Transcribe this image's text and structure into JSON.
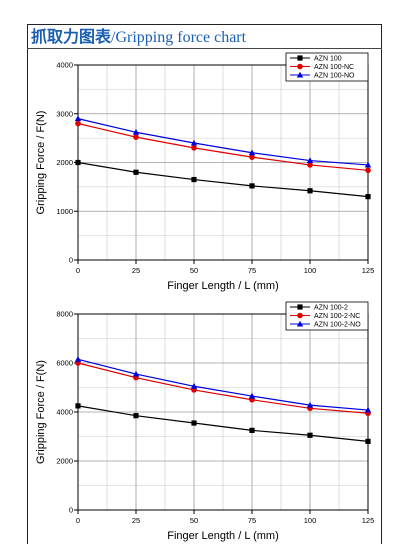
{
  "title": {
    "cn": "抓取力图表",
    "en": "/Gripping force chart"
  },
  "chart_data": [
    {
      "type": "line",
      "xlabel": "Finger Length / L (mm)",
      "ylabel": "Gripping Force / F(N)",
      "xlim": [
        0,
        125
      ],
      "ylim": [
        0,
        4000
      ],
      "xticks": [
        0,
        25,
        50,
        75,
        100,
        125
      ],
      "yticks": [
        0,
        1000,
        2000,
        3000,
        4000
      ],
      "grid": true,
      "legend_position": "top-right",
      "x": [
        0,
        25,
        50,
        75,
        100,
        125
      ],
      "series": [
        {
          "name": "AZN 100",
          "marker": "square",
          "color": "#000000",
          "values": [
            2000,
            1800,
            1650,
            1520,
            1420,
            1300
          ]
        },
        {
          "name": "AZN 100-NC",
          "marker": "circle",
          "color": "#e00000",
          "values": [
            2800,
            2520,
            2300,
            2110,
            1950,
            1840
          ]
        },
        {
          "name": "AZN 100-NO",
          "marker": "triangle",
          "color": "#0000dd",
          "values": [
            2900,
            2620,
            2400,
            2200,
            2040,
            1950
          ]
        }
      ]
    },
    {
      "type": "line",
      "xlabel": "Finger Length / L (mm)",
      "ylabel": "Gripping Force / F(N)",
      "xlim": [
        0,
        125
      ],
      "ylim": [
        0,
        8000
      ],
      "xticks": [
        0,
        25,
        50,
        75,
        100,
        125
      ],
      "yticks": [
        0,
        2000,
        4000,
        6000,
        8000
      ],
      "grid": true,
      "legend_position": "top-right",
      "x": [
        0,
        25,
        50,
        75,
        100,
        125
      ],
      "series": [
        {
          "name": "AZN 100-2",
          "marker": "square",
          "color": "#000000",
          "values": [
            4250,
            3850,
            3550,
            3250,
            3050,
            2800
          ]
        },
        {
          "name": "AZN 100-2-NC",
          "marker": "circle",
          "color": "#e00000",
          "values": [
            6000,
            5400,
            4900,
            4500,
            4150,
            3950
          ]
        },
        {
          "name": "AZN 100-2-NO",
          "marker": "triangle",
          "color": "#0000dd",
          "values": [
            6150,
            5550,
            5050,
            4650,
            4280,
            4080
          ]
        }
      ]
    }
  ]
}
